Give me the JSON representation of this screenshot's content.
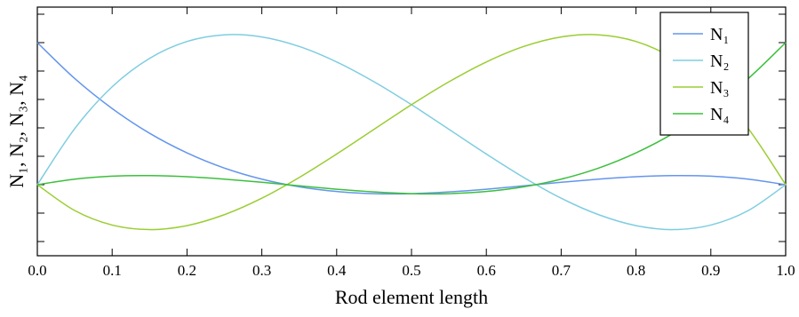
{
  "chart_data": {
    "type": "line",
    "xlabel": "Rod element length",
    "ylabel": "N₁, N₂, N₃, N₄",
    "x": [
      0,
      0.05,
      0.1,
      0.15,
      0.2,
      0.25,
      0.3,
      0.35,
      0.4,
      0.45,
      0.5,
      0.55,
      0.6,
      0.65,
      0.7,
      0.75,
      0.8,
      0.85,
      0.9,
      0.95,
      1
    ],
    "series": [
      {
        "name": "N₁",
        "color": "#6495ed",
        "values": [
          1,
          0.747,
          0.536,
          0.362,
          0.224,
          0.117,
          0.039,
          -0.015,
          -0.048,
          -0.063,
          -0.063,
          -0.051,
          -0.032,
          -0.008,
          0.017,
          0.039,
          0.056,
          0.064,
          0.06,
          0.039,
          0
        ]
      },
      {
        "name": "N₂",
        "color": "#7ecde0",
        "values": [
          0,
          0.395,
          0.689,
          0.889,
          1.008,
          1.055,
          1.04,
          0.973,
          0.864,
          0.724,
          0.563,
          0.39,
          0.216,
          0.051,
          -0.095,
          -0.211,
          -0.288,
          -0.316,
          -0.284,
          -0.182,
          0
        ]
      },
      {
        "name": "N₃",
        "color": "#9acd32",
        "values": [
          0,
          -0.182,
          -0.284,
          -0.316,
          -0.288,
          -0.211,
          -0.095,
          0.051,
          0.216,
          0.39,
          0.563,
          0.724,
          0.864,
          0.973,
          1.04,
          1.055,
          1.008,
          0.889,
          0.689,
          0.395,
          0
        ]
      },
      {
        "name": "N₄",
        "color": "#3cbf3c",
        "values": [
          0,
          0.039,
          0.06,
          0.064,
          0.056,
          0.039,
          0.017,
          -0.008,
          -0.032,
          -0.051,
          -0.063,
          -0.063,
          -0.048,
          -0.015,
          0.039,
          0.117,
          0.224,
          0.362,
          0.536,
          0.747,
          1
        ]
      }
    ],
    "xlim": [
      0,
      1
    ],
    "xticks": [
      {
        "value": 0,
        "label": "0.0"
      },
      0.1,
      0.2,
      0.3,
      0.4,
      0.5,
      0.6,
      0.7,
      0.8,
      0.9,
      {
        "value": 1,
        "label": "1.0"
      }
    ],
    "ylim": [
      -0.5,
      1.25
    ],
    "yticks": [
      -0.4,
      -0.2,
      0,
      0.2,
      0.4,
      0.6,
      0.8,
      1,
      1.2
    ],
    "legend": "upper-right"
  }
}
